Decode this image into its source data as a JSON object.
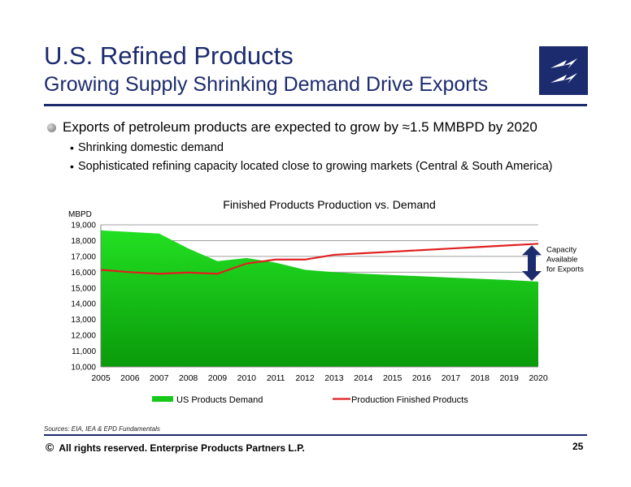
{
  "header": {
    "title": "U.S. Refined Products",
    "subtitle": "Growing Supply Shrinking Demand Drive Exports"
  },
  "bullets": {
    "main": "Exports of petroleum products are expected to grow by ≈1.5 MMBPD by 2020",
    "sub": [
      "Shrinking domestic demand",
      "Sophisticated refining capacity located close to growing markets (Central & South America)"
    ]
  },
  "chart_data": {
    "type": "area",
    "title": "Finished Products Production vs. Demand",
    "ylabel": "MBPD",
    "xlabel": "",
    "ylim": [
      10000,
      19000
    ],
    "yticks": [
      10000,
      11000,
      12000,
      13000,
      14000,
      15000,
      16000,
      17000,
      18000,
      19000
    ],
    "ytick_labels": [
      "10,000",
      "11,000",
      "12,000",
      "13,000",
      "14,000",
      "15,000",
      "16,000",
      "17,000",
      "18,000",
      "19,000"
    ],
    "x": [
      "2005",
      "2006",
      "2007",
      "2008",
      "2009",
      "2010",
      "2011",
      "2012",
      "2013",
      "2014",
      "2015",
      "2016",
      "2017",
      "2018",
      "2019",
      "2020"
    ],
    "series": [
      {
        "name": "US Products Demand",
        "type": "area",
        "color": "#18c818",
        "values": [
          18650,
          18550,
          18450,
          17500,
          16700,
          16900,
          16600,
          16150,
          16000,
          15900,
          15820,
          15740,
          15660,
          15580,
          15500,
          15400
        ]
      },
      {
        "name": "Production Finished Products",
        "type": "line",
        "color": "#e02020",
        "values": [
          16150,
          16000,
          15900,
          15980,
          15900,
          16550,
          16800,
          16800,
          17100,
          17200,
          17300,
          17400,
          17500,
          17600,
          17700,
          17800
        ]
      }
    ],
    "annotation": {
      "text": [
        "Capacity",
        "Available",
        "for Exports"
      ],
      "year": "2020",
      "arrow_color": "#1c2b6e"
    },
    "grid": true,
    "legend": "bottom"
  },
  "footer": {
    "sources": "Sources:  EIA, IEA & EPD Fundamentals",
    "copyright_symbol": "©",
    "copyright": "All rights reserved. Enterprise Products Partners L.P.",
    "page_number": "25"
  },
  "colors": {
    "brand_navy": "#1c2b6e"
  },
  "icons": {
    "logo": "enterprise-lightning-logo",
    "bullet": "gray-sphere-bullet"
  }
}
